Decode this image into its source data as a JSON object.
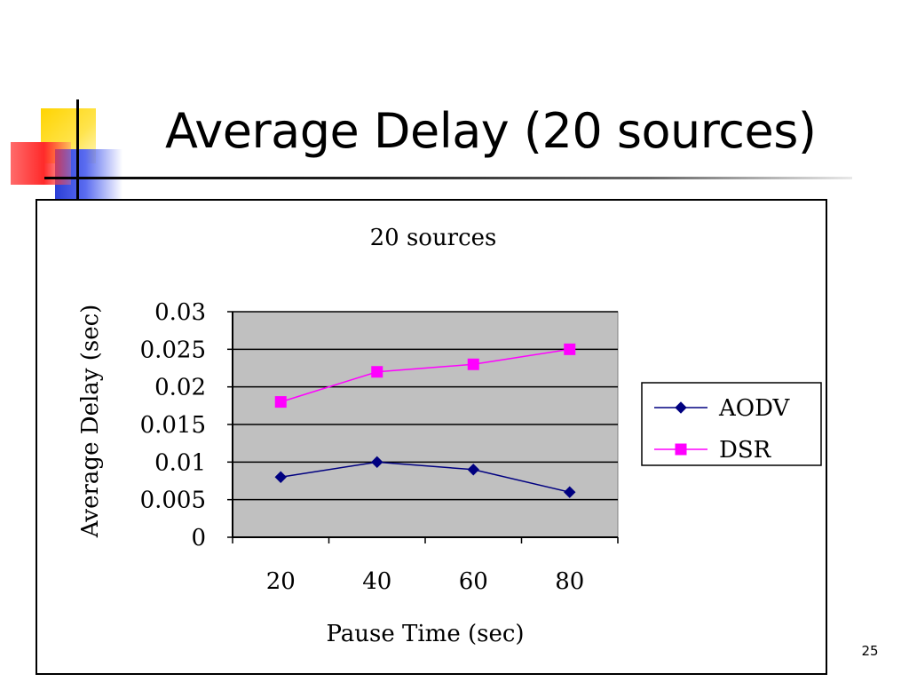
{
  "slide": {
    "title": "Average Delay (20 sources)",
    "page_number": "25"
  },
  "chart_data": {
    "type": "line",
    "title": "20 sources",
    "xlabel": "Pause Time (sec)",
    "ylabel": "Average Delay (sec)",
    "categories": [
      "20",
      "40",
      "60",
      "80"
    ],
    "x": [
      20,
      40,
      60,
      80
    ],
    "ylim": [
      0,
      0.03
    ],
    "yticks": [
      "0",
      "0.005",
      "0.01",
      "0.015",
      "0.02",
      "0.025",
      "0.03"
    ],
    "grid": true,
    "legend": "right",
    "plot_background": "#c0c0c0",
    "series": [
      {
        "name": "AODV",
        "values": [
          0.008,
          0.01,
          0.009,
          0.006
        ],
        "color": "#000080",
        "marker": "diamond"
      },
      {
        "name": "DSR",
        "values": [
          0.018,
          0.022,
          0.023,
          0.025
        ],
        "color": "#ff00ff",
        "marker": "square"
      }
    ]
  }
}
